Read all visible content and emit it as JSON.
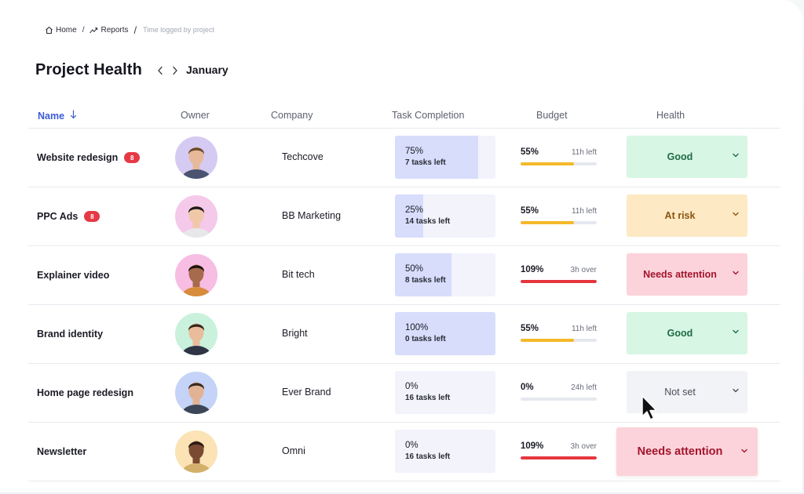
{
  "breadcrumb": {
    "home": "Home",
    "reports": "Reports",
    "current": "Time logged by project",
    "separator": "/"
  },
  "header": {
    "title": "Project Health",
    "month": "January"
  },
  "columns": {
    "name": "Name",
    "owner": "Owner",
    "company": "Company",
    "task_completion": "Task Completion",
    "budget": "Budget",
    "health": "Health"
  },
  "rows": [
    {
      "name": "Website redesign",
      "badge": "8",
      "company": "Techcove",
      "task_pct": "75%",
      "task_fraction": 0.83,
      "tasks_left": "7 tasks left",
      "budget_pct": "55%",
      "budget_fraction": 0.7,
      "budget_note": "11h left",
      "budget_color": "#f4b92a",
      "health": "Good",
      "health_bg": "#d7f6e4",
      "health_fg": "#1f6b44",
      "avatar_bg": "#d5cbf2"
    },
    {
      "name": "PPC Ads",
      "badge": "8",
      "company": "BB Marketing",
      "task_pct": "25%",
      "task_fraction": 0.28,
      "tasks_left": "14 tasks left",
      "budget_pct": "55%",
      "budget_fraction": 0.7,
      "budget_note": "11h left",
      "budget_color": "#f4b92a",
      "health": "At risk",
      "health_bg": "#fde9c4",
      "health_fg": "#8a5412",
      "avatar_bg": "#f5c9ea"
    },
    {
      "name": "Explainer video",
      "badge": "",
      "company": "Bit tech",
      "task_pct": "50%",
      "task_fraction": 0.56,
      "tasks_left": "8 tasks left",
      "budget_pct": "109%",
      "budget_fraction": 1.0,
      "budget_note": "3h over",
      "budget_color": "#e5363f",
      "health": "Needs attention",
      "health_bg": "#fcd3da",
      "health_fg": "#a3142d",
      "avatar_bg": "#f7bde3"
    },
    {
      "name": "Brand identity",
      "badge": "",
      "company": "Bright",
      "task_pct": "100%",
      "task_fraction": 1.0,
      "tasks_left": "0 tasks left",
      "budget_pct": "55%",
      "budget_fraction": 0.7,
      "budget_note": "11h left",
      "budget_color": "#f4b92a",
      "health": "Good",
      "health_bg": "#d7f6e4",
      "health_fg": "#1f6b44",
      "avatar_bg": "#c9f1dc"
    },
    {
      "name": "Home page redesign",
      "badge": "",
      "company": "Ever Brand",
      "task_pct": "0%",
      "task_fraction": 0,
      "tasks_left": "16 tasks left",
      "budget_pct": "0%",
      "budget_fraction": 0,
      "budget_note": "24h left",
      "budget_color": "#e6e8f0",
      "health": "Not set",
      "health_bg": "#f2f3f6",
      "health_fg": "#4a4d59",
      "avatar_bg": "#c4d3f7"
    },
    {
      "name": "Newsletter",
      "badge": "",
      "company": "Omni",
      "task_pct": "0%",
      "task_fraction": 0,
      "tasks_left": "16 tasks left",
      "budget_pct": "109%",
      "budget_fraction": 1.0,
      "budget_note": "3h over",
      "budget_color": "#e5363f",
      "health": "Needs attention",
      "health_bg": "#fcd3da",
      "health_fg": "#a3142d",
      "avatar_bg": "#fbe3b5"
    }
  ],
  "colors": {
    "accent": "#3b5bd6",
    "good": "#d7f6e4",
    "at_risk": "#fde9c4",
    "needs_attention": "#fcd3da",
    "task_fill": "#d7ddfb",
    "task_track": "#f2f3fb"
  },
  "icons": {
    "home": "home-icon",
    "reports": "chart-line-icon",
    "sort": "arrow-down-icon",
    "prev": "chevron-left-icon",
    "next": "chevron-right-icon",
    "dropdown": "chevron-down-icon",
    "cursor": "mouse-pointer-icon"
  }
}
